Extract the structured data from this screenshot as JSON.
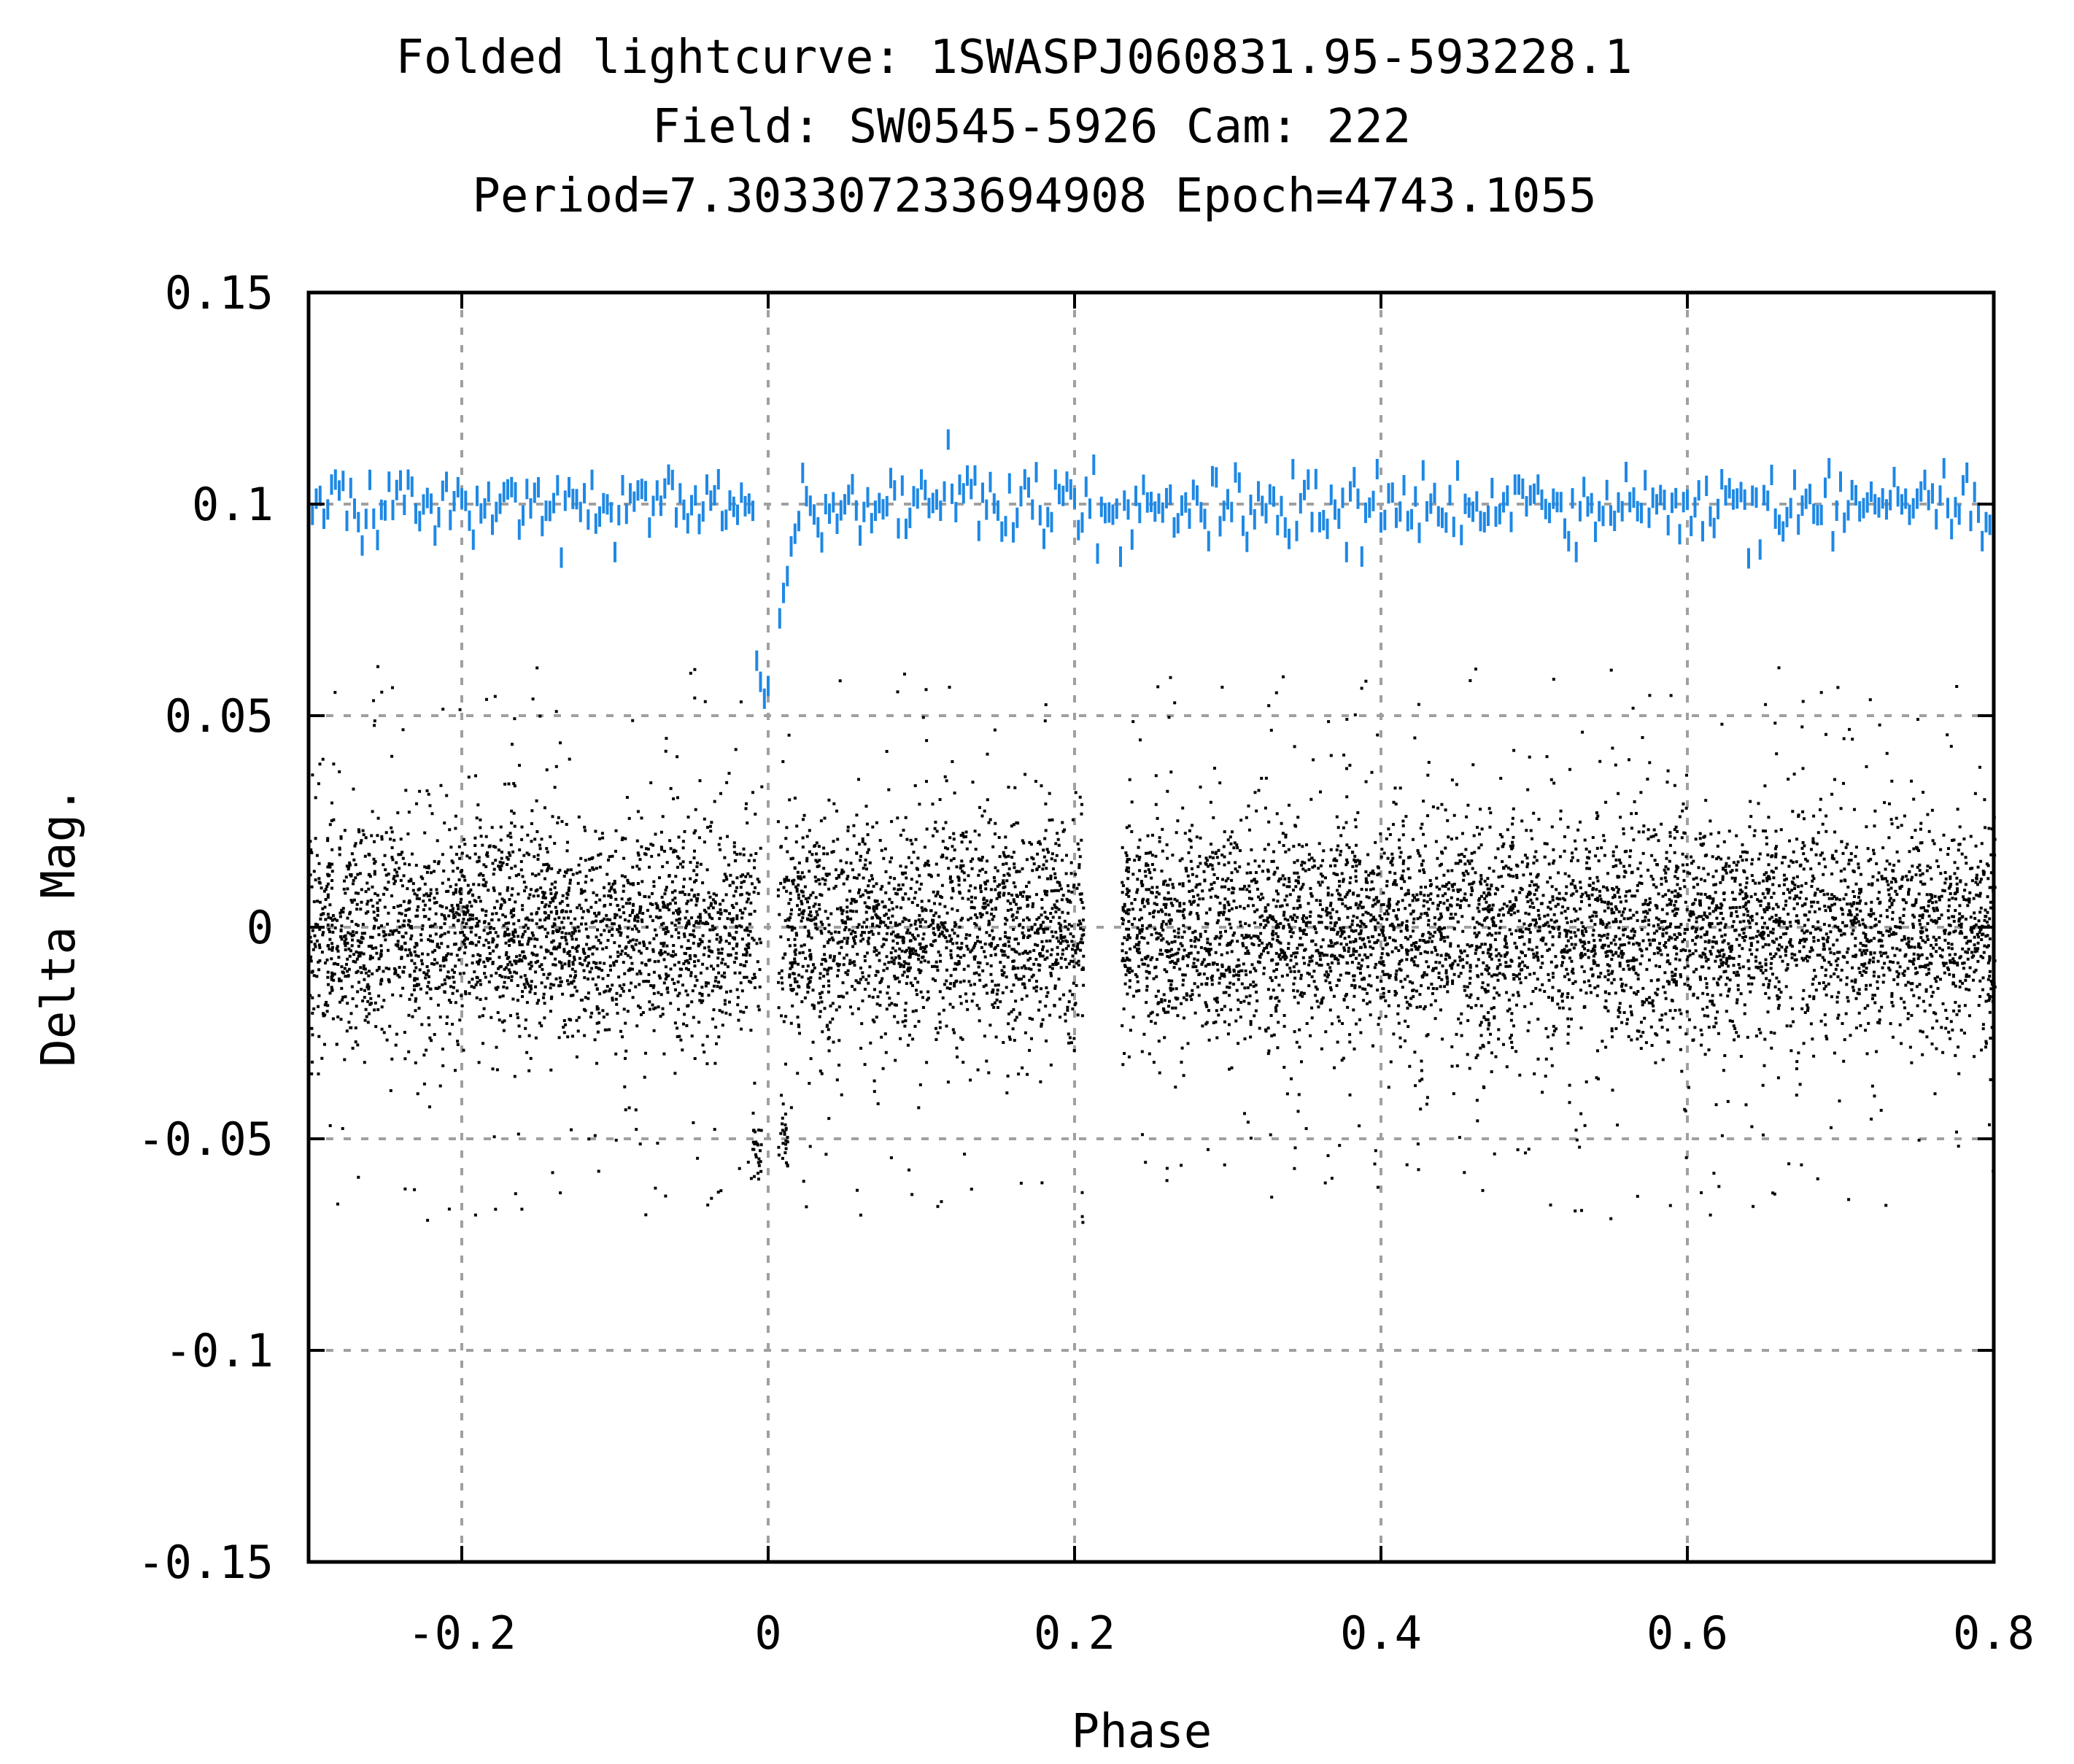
{
  "chart_data": {
    "type": "scatter",
    "title_lines": [
      "Folded lightcurve: 1SWASPJ060831.95-593228.1",
      "Field: SW0545-5926 Cam: 222",
      "Period=7.30330723369​4908 Epoch=4743.1055"
    ],
    "xlabel": "Phase",
    "ylabel": "Delta Mag.",
    "xlim": [
      -0.3,
      0.8
    ],
    "ylim": [
      -0.15,
      0.15
    ],
    "x_ticks": [
      -0.2,
      0,
      0.2,
      0.4,
      0.6,
      0.8
    ],
    "x_tick_labels": [
      "-0.2",
      "0",
      "0.2",
      "0.4",
      "0.6",
      "0.8"
    ],
    "y_ticks": [
      -0.15,
      -0.1,
      -0.05,
      0,
      0.05,
      0.1,
      0.15
    ],
    "y_tick_labels": [
      "-0.15",
      "-0.1",
      "-0.05",
      "0",
      "0.05",
      "0.1",
      "0.15"
    ],
    "grid": true,
    "series": [
      {
        "role": "raw-folded-points",
        "color": "#000000",
        "marker": "dot",
        "point_count": 9000,
        "center": 0.0,
        "typical_spread": 0.013,
        "outlier_range": [
          -0.07,
          0.062
        ],
        "gap_phases": [
          [
            -0.005,
            0.005
          ],
          [
            0.205,
            0.23
          ]
        ],
        "dip": {
          "phase": 0.0,
          "depth": -0.052,
          "width": 0.012
        }
      },
      {
        "role": "binned-offset-curve",
        "color": "#1e88e5",
        "marker": "short-vertical-bar",
        "offset": 0.1,
        "step": 0.0025,
        "noise": 0.004,
        "dip_points": [
          {
            "x": -0.0075,
            "y": 0.063
          },
          {
            "x": -0.005,
            "y": 0.058
          },
          {
            "x": -0.0025,
            "y": 0.054
          },
          {
            "x": 0.0,
            "y": 0.057
          },
          {
            "x": 0.0075,
            "y": 0.073
          },
          {
            "x": 0.01,
            "y": 0.079
          },
          {
            "x": 0.0125,
            "y": 0.083
          },
          {
            "x": 0.015,
            "y": 0.09
          },
          {
            "x": 0.0175,
            "y": 0.093
          },
          {
            "x": 0.02,
            "y": 0.096
          }
        ]
      }
    ]
  }
}
